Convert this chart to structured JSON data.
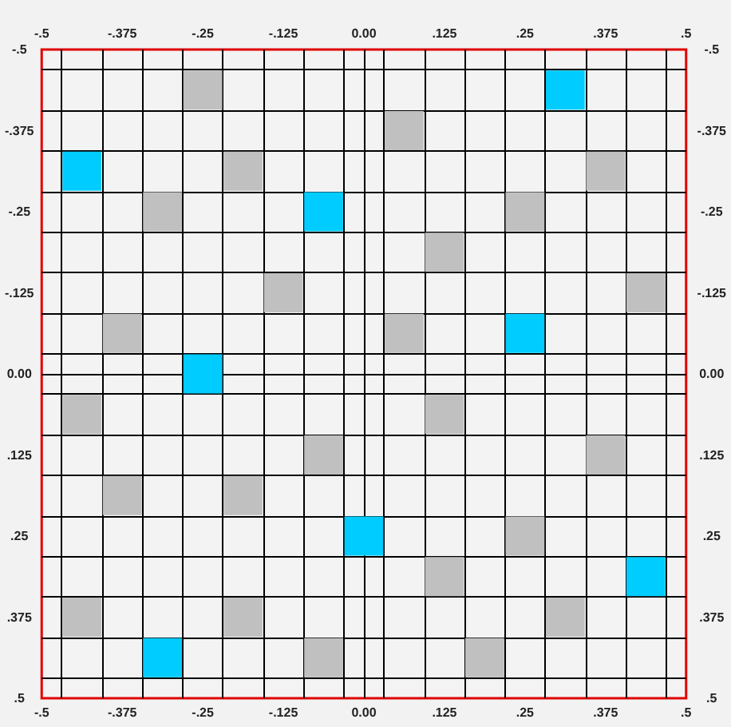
{
  "chart_data": {
    "type": "scatter",
    "marker": "square",
    "grid": true,
    "xlim": [
      -0.5,
      0.5
    ],
    "xticks": [
      {
        "value": -0.5,
        "label": "-.5"
      },
      {
        "value": -0.375,
        "label": "-.375"
      },
      {
        "value": -0.25,
        "label": "-.25"
      },
      {
        "value": -0.125,
        "label": "-.125"
      },
      {
        "value": 0,
        "label": "0.00"
      },
      {
        "value": 0.125,
        "label": ".125"
      },
      {
        "value": 0.25,
        "label": ".25"
      },
      {
        "value": 0.375,
        "label": ".375"
      },
      {
        "value": 0.5,
        "label": ".5"
      },
      {
        "value": -0.46875,
        "label": null
      },
      {
        "value": -0.40625,
        "label": null
      },
      {
        "value": -0.34375,
        "label": null
      },
      {
        "value": -0.28125,
        "label": null
      },
      {
        "value": -0.21875,
        "label": null
      },
      {
        "value": -0.15625,
        "label": null
      },
      {
        "value": -0.09375,
        "label": null
      },
      {
        "value": -0.03125,
        "label": null
      },
      {
        "value": 0,
        "label": null
      },
      {
        "value": 0.03125,
        "label": null
      },
      {
        "value": 0.09375,
        "label": null
      },
      {
        "value": 0.15625,
        "label": null
      },
      {
        "value": 0.21875,
        "label": null
      },
      {
        "value": 0.28125,
        "label": null
      },
      {
        "value": 0.34375,
        "label": null
      },
      {
        "value": 0.40625,
        "label": null
      },
      {
        "value": 0.46875,
        "label": null
      }
    ],
    "x2lim": [
      -0.5,
      0.5
    ],
    "x2ticks": [
      {
        "value": -0.5,
        "label": "-.5"
      },
      {
        "value": -0.375,
        "label": "-.375"
      },
      {
        "value": -0.25,
        "label": "-.25"
      },
      {
        "value": -0.125,
        "label": "-.125"
      },
      {
        "value": 0,
        "label": "0.00"
      },
      {
        "value": 0.125,
        "label": ".125"
      },
      {
        "value": 0.25,
        "label": ".25"
      },
      {
        "value": 0.375,
        "label": ".375"
      },
      {
        "value": 0.5,
        "label": ".5"
      }
    ],
    "ylim": [
      0.5,
      -0.5
    ],
    "yticks": [
      {
        "value": -0.5,
        "label": "-.5"
      },
      {
        "value": -0.375,
        "label": "-.375"
      },
      {
        "value": -0.25,
        "label": "-.25"
      },
      {
        "value": -0.125,
        "label": "-.125"
      },
      {
        "value": 0,
        "label": "0.00"
      },
      {
        "value": 0.125,
        "label": ".125"
      },
      {
        "value": 0.25,
        "label": ".25"
      },
      {
        "value": 0.375,
        "label": ".375"
      },
      {
        "value": 0.5,
        "label": ".5"
      },
      {
        "value": -0.46875,
        "label": null
      },
      {
        "value": -0.40625,
        "label": null
      },
      {
        "value": -0.34375,
        "label": null
      },
      {
        "value": -0.28125,
        "label": null
      },
      {
        "value": -0.21875,
        "label": null
      },
      {
        "value": -0.15625,
        "label": null
      },
      {
        "value": -0.09375,
        "label": null
      },
      {
        "value": -0.03125,
        "label": null
      },
      {
        "value": 0,
        "label": null
      },
      {
        "value": 0.03125,
        "label": null
      },
      {
        "value": 0.09375,
        "label": null
      },
      {
        "value": 0.15625,
        "label": null
      },
      {
        "value": 0.21875,
        "label": null
      },
      {
        "value": 0.28125,
        "label": null
      },
      {
        "value": 0.34375,
        "label": null
      },
      {
        "value": 0.40625,
        "label": null
      },
      {
        "value": 0.46875,
        "label": null
      }
    ],
    "y2lim": [
      0.5,
      -0.5
    ],
    "y2ticks": [
      {
        "value": -0.5,
        "label": "-.5"
      },
      {
        "value": -0.375,
        "label": "-.375"
      },
      {
        "value": -0.25,
        "label": "-.25"
      },
      {
        "value": -0.125,
        "label": "-.125"
      },
      {
        "value": 0,
        "label": "0.00"
      },
      {
        "value": 0.125,
        "label": ".125"
      },
      {
        "value": 0.25,
        "label": ".25"
      },
      {
        "value": 0.375,
        "label": ".375"
      },
      {
        "value": 0.5,
        "label": ".5"
      }
    ],
    "series": [
      {
        "color": "#c0c0c0",
        "x": [
          -0.25,
          0.0625,
          -0.1875,
          0.375,
          -0.3125,
          0.25,
          0.125,
          -0.125,
          0.4375,
          -0.375,
          0.0625,
          -0.4375,
          0.125,
          -0.0625,
          0.375,
          -0.375,
          -0.1875,
          0.25,
          0.125,
          -0.4375,
          -0.1875,
          0.3125,
          -0.0625,
          0.1875
        ],
        "values": [
          -0.4375,
          -0.375,
          -0.3125,
          -0.3125,
          -0.25,
          -0.25,
          -0.1875,
          -0.125,
          -0.125,
          -0.0625,
          -0.0625,
          0.0625,
          0.0625,
          0.125,
          0.125,
          0.1875,
          0.1875,
          0.25,
          0.3125,
          0.375,
          0.375,
          0.375,
          0.4375,
          0.4375
        ]
      },
      {
        "color": "#00ccff",
        "x": [
          0.3125,
          -0.4375,
          -0.0625,
          0.25,
          -0.25,
          0,
          0.4375,
          -0.3125
        ],
        "values": [
          -0.4375,
          -0.3125,
          -0.25,
          -0.0625,
          0,
          0.25,
          0.3125,
          0.4375
        ]
      }
    ]
  }
}
